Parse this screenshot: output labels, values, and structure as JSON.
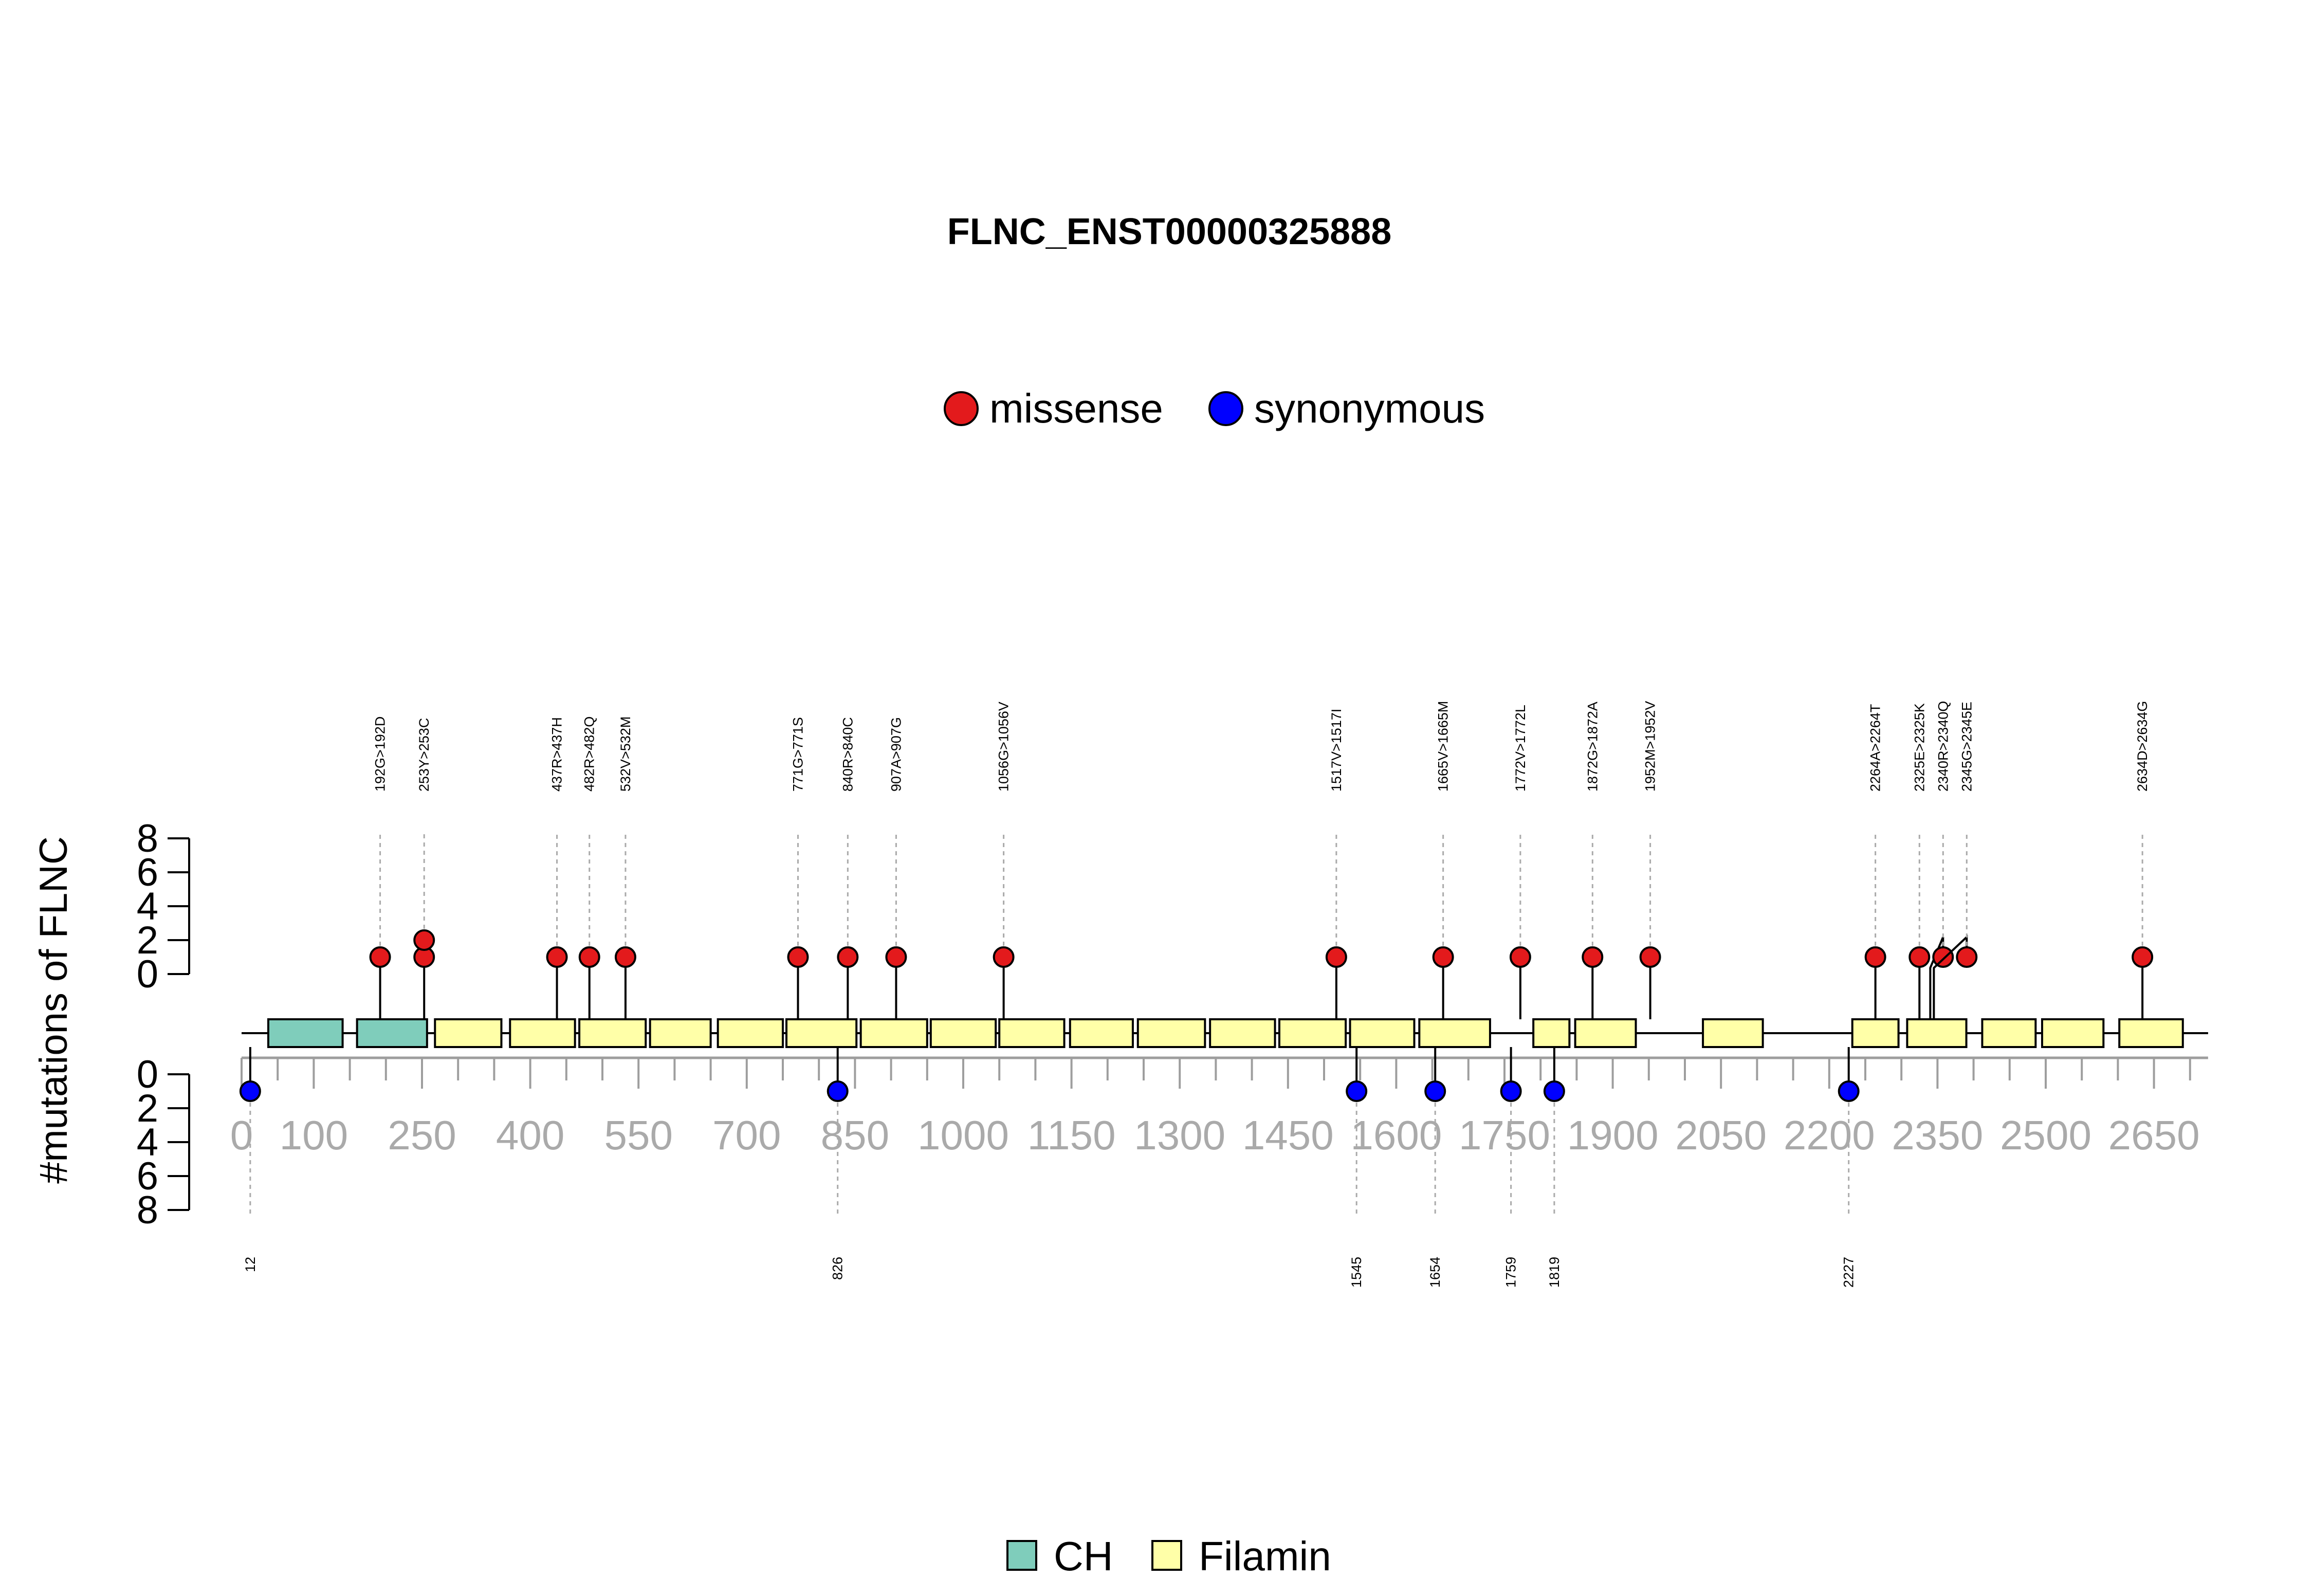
{
  "chart_data": {
    "type": "lollipop",
    "title": "FLNC_ENST00000325888",
    "ylabel": "#mutations of FLNC",
    "xlim": [
      0,
      2725
    ],
    "x_ticks": [
      0,
      100,
      250,
      400,
      550,
      700,
      850,
      1000,
      1150,
      1300,
      1450,
      1600,
      1750,
      1900,
      2050,
      2200,
      2350,
      2500,
      2650
    ],
    "y_ticks": [
      0,
      2,
      4,
      6,
      8
    ],
    "ylim": [
      0,
      8
    ],
    "mutation_legend": [
      {
        "label": "missense",
        "color": "#E31A1C"
      },
      {
        "label": "synonymous",
        "color": "#0000FF"
      }
    ],
    "domain_legend": [
      {
        "label": "CH",
        "color": "#7FCDBB"
      },
      {
        "label": "Filamin",
        "color": "#FFFFA8"
      }
    ],
    "domains": [
      {
        "name": "CH",
        "start": 37,
        "end": 140
      },
      {
        "name": "CH",
        "start": 160,
        "end": 257
      },
      {
        "name": "Filamin",
        "start": 268,
        "end": 360
      },
      {
        "name": "Filamin",
        "start": 372,
        "end": 462
      },
      {
        "name": "Filamin",
        "start": 468,
        "end": 560
      },
      {
        "name": "Filamin",
        "start": 566,
        "end": 650
      },
      {
        "name": "Filamin",
        "start": 660,
        "end": 750
      },
      {
        "name": "Filamin",
        "start": 755,
        "end": 852
      },
      {
        "name": "Filamin",
        "start": 858,
        "end": 950
      },
      {
        "name": "Filamin",
        "start": 955,
        "end": 1045
      },
      {
        "name": "Filamin",
        "start": 1050,
        "end": 1140
      },
      {
        "name": "Filamin",
        "start": 1148,
        "end": 1235
      },
      {
        "name": "Filamin",
        "start": 1242,
        "end": 1335
      },
      {
        "name": "Filamin",
        "start": 1342,
        "end": 1432
      },
      {
        "name": "Filamin",
        "start": 1438,
        "end": 1530
      },
      {
        "name": "Filamin",
        "start": 1536,
        "end": 1625
      },
      {
        "name": "Filamin",
        "start": 1632,
        "end": 1730
      },
      {
        "name": "Filamin",
        "start": 1790,
        "end": 1840
      },
      {
        "name": "Filamin",
        "start": 1848,
        "end": 1932
      },
      {
        "name": "Filamin",
        "start": 2025,
        "end": 2108
      },
      {
        "name": "Filamin",
        "start": 2232,
        "end": 2296
      },
      {
        "name": "Filamin",
        "start": 2308,
        "end": 2390
      },
      {
        "name": "Filamin",
        "start": 2412,
        "end": 2486
      },
      {
        "name": "Filamin",
        "start": 2495,
        "end": 2580
      },
      {
        "name": "Filamin",
        "start": 2602,
        "end": 2690
      }
    ],
    "missense": [
      {
        "pos": 192,
        "label": "192G>192D",
        "count": 1
      },
      {
        "pos": 253,
        "label": "253Y>253C",
        "count": 2
      },
      {
        "pos": 437,
        "label": "437R>437H",
        "count": 1
      },
      {
        "pos": 482,
        "label": "482R>482Q",
        "count": 1
      },
      {
        "pos": 532,
        "label": "532V>532M",
        "count": 1
      },
      {
        "pos": 771,
        "label": "771G>771S",
        "count": 1
      },
      {
        "pos": 840,
        "label": "840R>840C",
        "count": 1
      },
      {
        "pos": 907,
        "label": "907A>907G",
        "count": 1
      },
      {
        "pos": 1056,
        "label": "1056G>1056V",
        "count": 1
      },
      {
        "pos": 1517,
        "label": "1517V>1517I",
        "count": 1
      },
      {
        "pos": 1665,
        "label": "1665V>1665M",
        "count": 1
      },
      {
        "pos": 1772,
        "label": "1772V>1772L",
        "count": 1
      },
      {
        "pos": 1872,
        "label": "1872G>1872A",
        "count": 1
      },
      {
        "pos": 1952,
        "label": "1952M>1952V",
        "count": 1
      },
      {
        "pos": 2264,
        "label": "2264A>2264T",
        "count": 1
      },
      {
        "pos": 2325,
        "label": "2325E>2325K",
        "count": 1
      },
      {
        "pos": 2340,
        "label": "2340R>2340Q",
        "count": 1
      },
      {
        "pos": 2345,
        "label": "2345G>2345E",
        "count": 1
      },
      {
        "pos": 2634,
        "label": "2634D>2634G",
        "count": 1
      }
    ],
    "synonymous": [
      {
        "pos": 12,
        "label": "12",
        "count": 1
      },
      {
        "pos": 826,
        "label": "826",
        "count": 1
      },
      {
        "pos": 1545,
        "label": "1545",
        "count": 1
      },
      {
        "pos": 1654,
        "label": "1654",
        "count": 1
      },
      {
        "pos": 1759,
        "label": "1759",
        "count": 1
      },
      {
        "pos": 1819,
        "label": "1819",
        "count": 1
      },
      {
        "pos": 2227,
        "label": "2227",
        "count": 1
      }
    ]
  }
}
